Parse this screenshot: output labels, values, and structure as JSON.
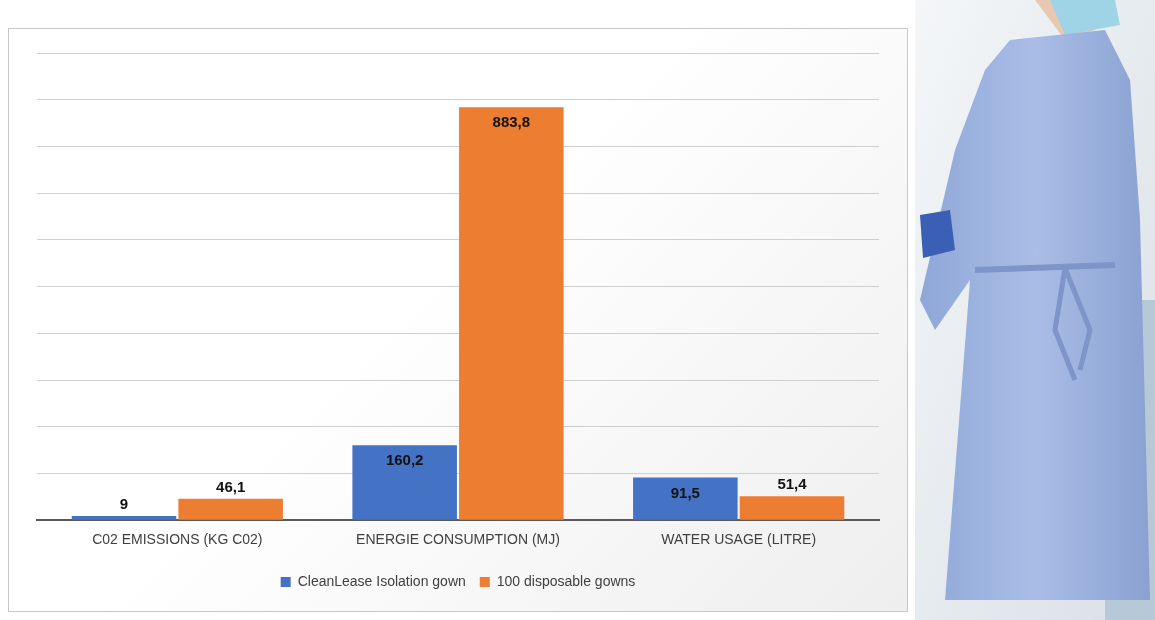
{
  "chart_data": {
    "type": "bar",
    "categories": [
      "C02 EMISSIONS (KG C02)",
      "ENERGIE CONSUMPTION (MJ)",
      "WATER USAGE (LITRE)"
    ],
    "series": [
      {
        "name": "CleanLease Isolation gown",
        "color": "#4472c4",
        "values": [
          9,
          160.2,
          91.5
        ],
        "value_labels": [
          "9",
          "160,2",
          "91,5"
        ]
      },
      {
        "name": "100 disposable gowns",
        "color": "#ed7d31",
        "values": [
          46.1,
          883.8,
          51.4
        ],
        "value_labels": [
          "46,1",
          "883,8",
          "51,4"
        ]
      }
    ],
    "ylim": [
      0,
      1000
    ],
    "yticks": [
      0,
      100,
      200,
      300,
      400,
      500,
      600,
      700,
      800,
      900,
      1000
    ],
    "grid": true,
    "legend": "bottom",
    "data_labels": true,
    "tick_labels": "x"
  }
}
